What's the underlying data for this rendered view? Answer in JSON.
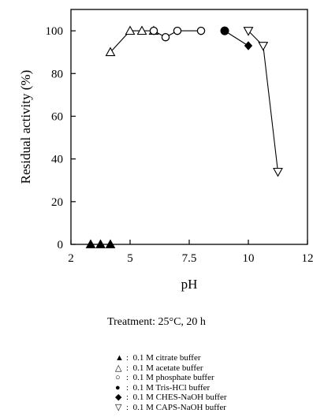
{
  "chart_data": {
    "type": "scatter",
    "xlabel": "pH",
    "ylabel": "Residual activity (%)",
    "xlim": [
      2,
      12
    ],
    "ylim": [
      0,
      110
    ],
    "xticks": [
      "2",
      "5",
      "7.5",
      "10",
      "12"
    ],
    "yticks": [
      "0",
      "20",
      "40",
      "60",
      "80",
      "100"
    ],
    "grid": false,
    "series": [
      {
        "name": "0.1 M citrate buffer",
        "marker": "filled-triangle",
        "connected": false,
        "x": [
          3.0,
          3.5,
          4.0
        ],
        "y": [
          0,
          0,
          0
        ]
      },
      {
        "name": "0.1 M acetate buffer",
        "marker": "open-triangle",
        "connected": true,
        "x": [
          4.0,
          5.0,
          5.5,
          6.0
        ],
        "y": [
          90,
          100,
          100,
          100
        ]
      },
      {
        "name": "0.1 M phosphate buffer",
        "marker": "open-circle",
        "connected": true,
        "x": [
          6.0,
          6.5,
          7.0,
          8.0
        ],
        "y": [
          100,
          97,
          100,
          100
        ]
      },
      {
        "name": "0.1 M Tris-HCl buffer",
        "marker": "filled-circle",
        "connected": true,
        "x": [
          9.0
        ],
        "y": [
          100
        ]
      },
      {
        "name": "0.1 M CHES-NaOH buffer",
        "marker": "filled-diamond",
        "connected": true,
        "x": [
          9.0,
          10.0
        ],
        "y": [
          100,
          93
        ]
      },
      {
        "name": "0.1 M CAPS-NaOH buffer",
        "marker": "open-triangle-down",
        "connected": true,
        "x": [
          10.0,
          10.5,
          11.0
        ],
        "y": [
          100,
          93,
          34
        ]
      }
    ]
  },
  "treatment_label": "Treatment: 25°C, 20 h",
  "legend": [
    {
      "symbol": "▲",
      "label": "0.1 M citrate buffer"
    },
    {
      "symbol": "△",
      "label": "0.1 M acetate buffer"
    },
    {
      "symbol": "○",
      "label": "0.1 M phosphate buffer"
    },
    {
      "symbol": "●",
      "label": "0.1 M Tris-HCl buffer"
    },
    {
      "symbol": "◆",
      "label": "0.1 M CHES-NaOH buffer"
    },
    {
      "symbol": "▽",
      "label": "0.1 M CAPS-NaOH buffer"
    }
  ]
}
